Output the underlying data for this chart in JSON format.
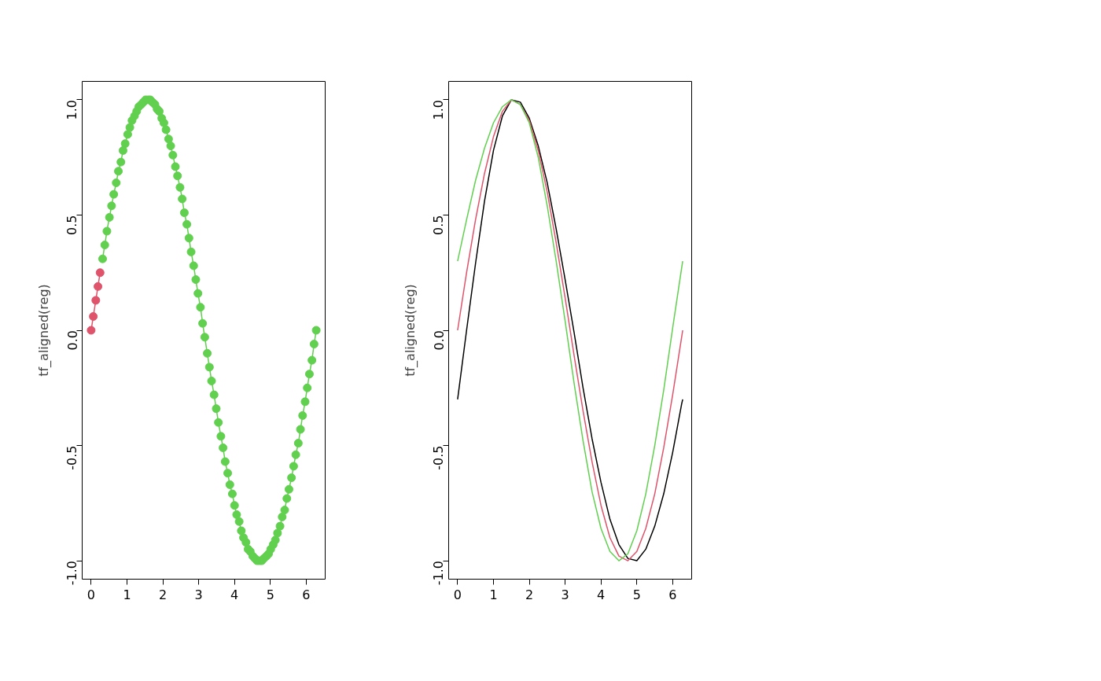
{
  "chart_data": [
    {
      "type": "line",
      "ylabel": "tf_aligned(reg)",
      "marker": "circle",
      "grid": false,
      "xlim": [
        -0.25,
        6.53
      ],
      "ylim": [
        -1.08,
        1.08
      ],
      "xticks": [
        0,
        1,
        2,
        3,
        4,
        5,
        6
      ],
      "yticks": [
        {
          "value": -1,
          "label": "-1.0"
        },
        {
          "value": -0.5,
          "label": "-0.5"
        },
        {
          "value": 0,
          "label": "0.0"
        },
        {
          "value": 0.5,
          "label": "0.5"
        },
        {
          "value": 1,
          "label": "1.0"
        }
      ],
      "series": [
        {
          "color": "#61d04f",
          "x": [
            0.32,
            0.38,
            0.44,
            0.51,
            0.57,
            0.63,
            0.7,
            0.76,
            0.83,
            0.89,
            0.95,
            1.02,
            1.08,
            1.14,
            1.21,
            1.27,
            1.33,
            1.4,
            1.46,
            1.52,
            1.59,
            1.65,
            1.71,
            1.78,
            1.84,
            1.9,
            1.97,
            2.03,
            2.09,
            2.16,
            2.22,
            2.28,
            2.35,
            2.41,
            2.48,
            2.54,
            2.6,
            2.67,
            2.73,
            2.79,
            2.86,
            2.92,
            2.98,
            3.05,
            3.11,
            3.17,
            3.24,
            3.3,
            3.36,
            3.43,
            3.49,
            3.55,
            3.62,
            3.68,
            3.74,
            3.81,
            3.87,
            3.94,
            4.0,
            4.06,
            4.13,
            4.19,
            4.25,
            4.32,
            4.38,
            4.44,
            4.51,
            4.57,
            4.63,
            4.7,
            4.76,
            4.82,
            4.89,
            4.95,
            5.01,
            5.08,
            5.14,
            5.2,
            5.27,
            5.33,
            5.4,
            5.46,
            5.52,
            5.59,
            5.65,
            5.71,
            5.78,
            5.84,
            5.9,
            5.97,
            6.03,
            6.09,
            6.16,
            6.22,
            6.28
          ],
          "values": [
            0.31,
            0.37,
            0.43,
            0.49,
            0.54,
            0.59,
            0.64,
            0.69,
            0.73,
            0.78,
            0.81,
            0.85,
            0.88,
            0.91,
            0.93,
            0.95,
            0.97,
            0.98,
            0.99,
            1.0,
            1.0,
            1.0,
            0.99,
            0.98,
            0.96,
            0.95,
            0.92,
            0.9,
            0.87,
            0.83,
            0.8,
            0.76,
            0.71,
            0.67,
            0.62,
            0.57,
            0.51,
            0.46,
            0.4,
            0.34,
            0.28,
            0.22,
            0.16,
            0.1,
            0.03,
            -0.03,
            -0.1,
            -0.16,
            -0.22,
            -0.28,
            -0.34,
            -0.4,
            -0.46,
            -0.51,
            -0.57,
            -0.62,
            -0.67,
            -0.71,
            -0.76,
            -0.8,
            -0.83,
            -0.87,
            -0.9,
            -0.92,
            -0.95,
            -0.96,
            -0.98,
            -0.99,
            -1.0,
            -1.0,
            -1.0,
            -0.99,
            -0.98,
            -0.97,
            -0.95,
            -0.93,
            -0.91,
            -0.88,
            -0.85,
            -0.81,
            -0.78,
            -0.73,
            -0.69,
            -0.64,
            -0.59,
            -0.54,
            -0.49,
            -0.43,
            -0.37,
            -0.31,
            -0.25,
            -0.19,
            -0.13,
            -0.06,
            0
          ]
        },
        {
          "color": "#df536b",
          "x": [
            0,
            0.06,
            0.13,
            0.19,
            0.25
          ],
          "values": [
            0,
            0.06,
            0.13,
            0.19,
            0.25
          ]
        }
      ]
    },
    {
      "type": "line",
      "ylabel": "tf_aligned(reg)",
      "grid": false,
      "xlim": [
        -0.25,
        6.53
      ],
      "ylim": [
        -1.08,
        1.08
      ],
      "xticks": [
        0,
        1,
        2,
        3,
        4,
        5,
        6
      ],
      "yticks": [
        {
          "value": -1,
          "label": "-1.0"
        },
        {
          "value": -0.5,
          "label": "-0.5"
        },
        {
          "value": 0,
          "label": "0.0"
        },
        {
          "value": 0.5,
          "label": "0.5"
        },
        {
          "value": 1,
          "label": "1.0"
        }
      ],
      "series": [
        {
          "color": "#000000",
          "x": [
            0,
            0.25,
            0.5,
            0.75,
            1,
            1.25,
            1.5,
            1.75,
            2,
            2.25,
            2.5,
            2.75,
            3,
            3.25,
            3.5,
            3.75,
            4,
            4.25,
            4.5,
            4.75,
            5,
            5.25,
            5.5,
            5.75,
            6,
            6.25,
            6.28
          ],
          "values": [
            -0.3,
            0.0,
            0.29,
            0.56,
            0.78,
            0.93,
            1.0,
            0.99,
            0.92,
            0.8,
            0.64,
            0.44,
            0.22,
            -0.01,
            -0.25,
            -0.47,
            -0.66,
            -0.82,
            -0.93,
            -0.99,
            -1.0,
            -0.95,
            -0.85,
            -0.71,
            -0.53,
            -0.32,
            -0.3
          ]
        },
        {
          "color": "#df536b",
          "x": [
            0,
            0.25,
            0.5,
            0.75,
            1,
            1.25,
            1.5,
            1.75,
            2,
            2.25,
            2.5,
            2.75,
            3,
            3.25,
            3.5,
            3.75,
            4,
            4.25,
            4.5,
            4.75,
            5,
            5.25,
            5.5,
            5.75,
            6,
            6.25,
            6.28
          ],
          "values": [
            0,
            0.25,
            0.48,
            0.68,
            0.84,
            0.95,
            1.0,
            0.98,
            0.91,
            0.78,
            0.6,
            0.38,
            0.14,
            -0.11,
            -0.35,
            -0.57,
            -0.76,
            -0.9,
            -0.98,
            -1.0,
            -0.96,
            -0.86,
            -0.71,
            -0.51,
            -0.28,
            -0.03,
            0
          ]
        },
        {
          "color": "#61d04f",
          "x": [
            0,
            0.25,
            0.5,
            0.75,
            1,
            1.25,
            1.5,
            1.75,
            2,
            2.25,
            2.5,
            2.75,
            3,
            3.25,
            3.5,
            3.75,
            4,
            4.25,
            4.5,
            4.75,
            5,
            5.25,
            5.5,
            5.75,
            6,
            6.25,
            6.28
          ],
          "values": [
            0.3,
            0.48,
            0.65,
            0.79,
            0.9,
            0.97,
            1.0,
            0.98,
            0.9,
            0.75,
            0.54,
            0.3,
            0.04,
            -0.23,
            -0.48,
            -0.7,
            -0.86,
            -0.96,
            -1.0,
            -0.97,
            -0.87,
            -0.71,
            -0.5,
            -0.26,
            0.01,
            0.27,
            0.3
          ]
        }
      ]
    }
  ]
}
